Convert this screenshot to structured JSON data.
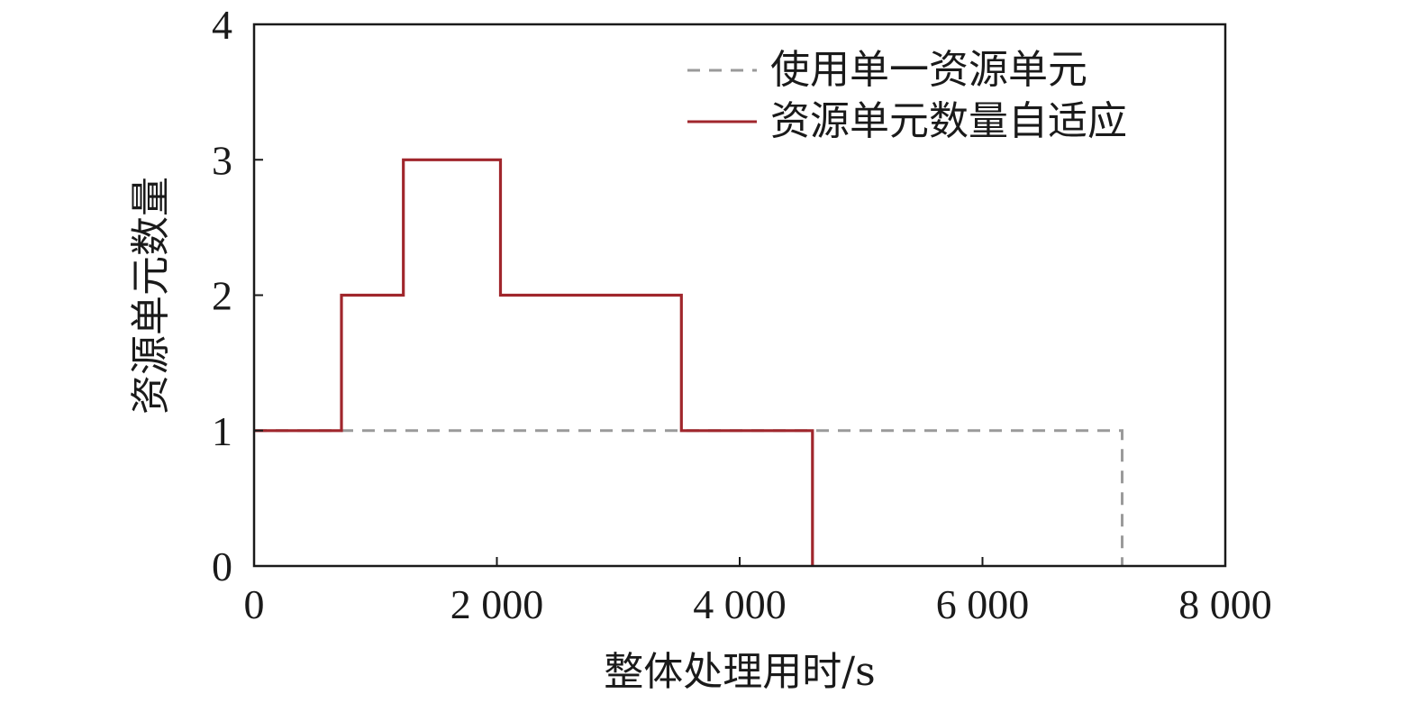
{
  "chart_data": {
    "type": "line",
    "title": "",
    "xlabel": "整体处理用时/s",
    "ylabel": "资源单元数量",
    "xlim": [
      0,
      8000
    ],
    "ylim": [
      0,
      4
    ],
    "x_ticks": [
      0,
      2000,
      4000,
      6000,
      8000
    ],
    "x_tick_labels": [
      "0",
      "2 000",
      "4 000",
      "6 000",
      "8 000"
    ],
    "y_ticks": [
      0,
      1,
      2,
      3,
      4
    ],
    "y_tick_labels": [
      "0",
      "1",
      "2",
      "3",
      "4"
    ],
    "grid": false,
    "legend_position": "top-right",
    "series": [
      {
        "name": "使用单一资源单元",
        "style": "dashed",
        "color": "#9a9a9a",
        "points": [
          [
            0,
            1
          ],
          [
            7150,
            1
          ],
          [
            7150,
            0
          ]
        ]
      },
      {
        "name": "资源单元数量自适应",
        "style": "solid",
        "color": "#a0262c",
        "points": [
          [
            0,
            1
          ],
          [
            720,
            1
          ],
          [
            720,
            2
          ],
          [
            1230,
            2
          ],
          [
            1230,
            3
          ],
          [
            2030,
            3
          ],
          [
            2030,
            2
          ],
          [
            3520,
            2
          ],
          [
            3520,
            1
          ],
          [
            4600,
            1
          ],
          [
            4600,
            0
          ]
        ]
      }
    ]
  }
}
